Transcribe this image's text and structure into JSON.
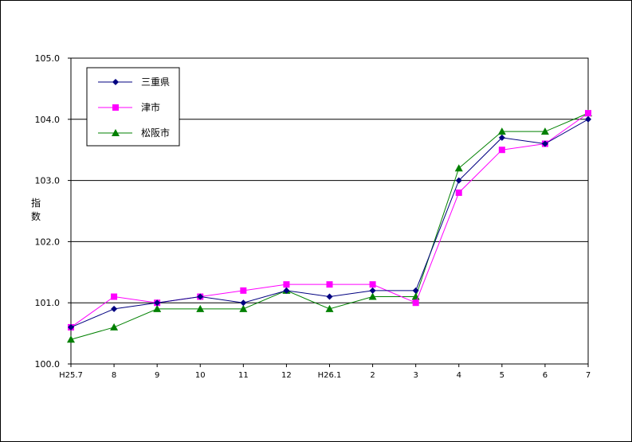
{
  "chart_data": {
    "type": "line",
    "title": "",
    "xlabel": "",
    "ylabel": "指数",
    "ylim": [
      100.0,
      105.0
    ],
    "yticks": [
      "100.0",
      "101.0",
      "102.0",
      "103.0",
      "104.0",
      "105.0"
    ],
    "categories": [
      "H25.7",
      "8",
      "9",
      "10",
      "11",
      "12",
      "H26.1",
      "2",
      "3",
      "4",
      "5",
      "6",
      "7"
    ],
    "grid": true,
    "legend_position": "top-left",
    "series": [
      {
        "name": "三重県",
        "color": "#000080",
        "marker": "diamond",
        "values": [
          100.6,
          100.9,
          101.0,
          101.1,
          101.0,
          101.2,
          101.1,
          101.2,
          101.2,
          103.0,
          103.7,
          103.6,
          104.0
        ]
      },
      {
        "name": "津市",
        "color": "#ff00ff",
        "marker": "square",
        "values": [
          100.6,
          101.1,
          101.0,
          101.1,
          101.2,
          101.3,
          101.3,
          101.3,
          101.0,
          102.8,
          103.5,
          103.6,
          104.1
        ]
      },
      {
        "name": "松阪市",
        "color": "#008000",
        "marker": "triangle",
        "values": [
          100.4,
          100.6,
          100.9,
          100.9,
          100.9,
          101.2,
          100.9,
          101.1,
          101.1,
          103.2,
          103.8,
          103.8,
          104.1
        ]
      }
    ]
  }
}
